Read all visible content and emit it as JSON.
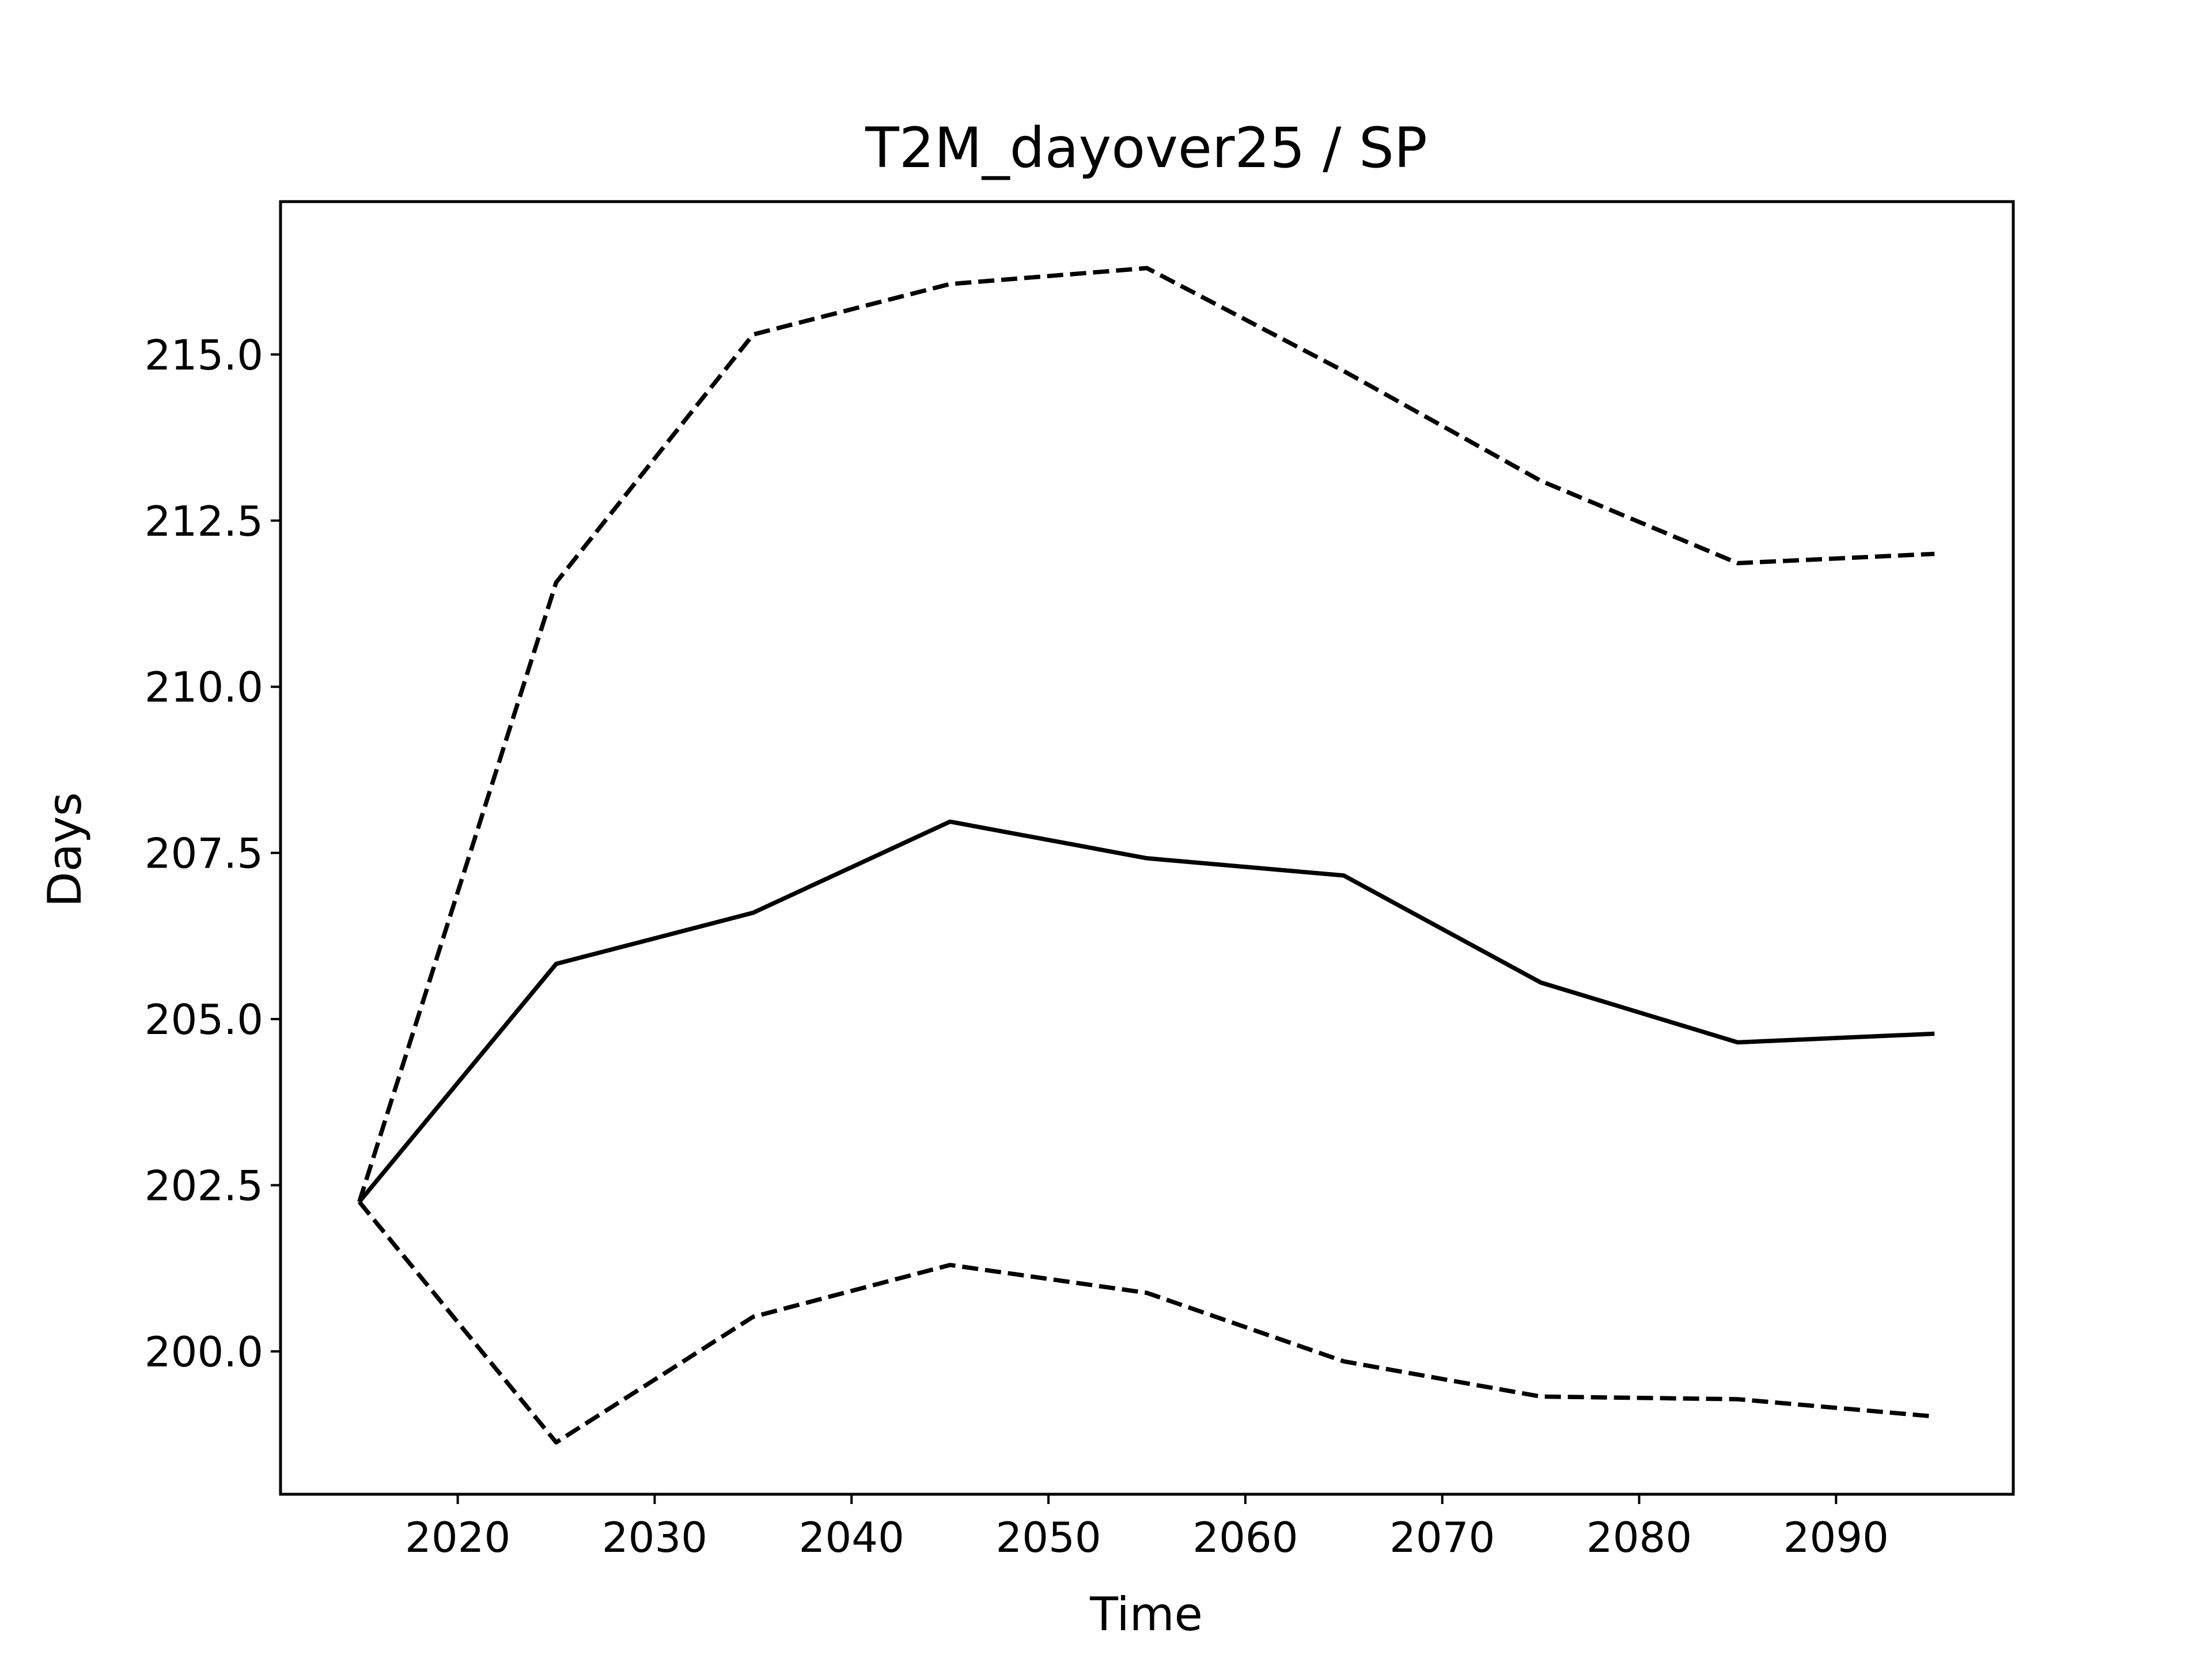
{
  "chart_data": {
    "type": "line",
    "title": "T2M_dayover25 / SP",
    "xlabel": "Time",
    "ylabel": "Days",
    "xlim": [
      2011,
      2099
    ],
    "ylim": [
      197.85,
      217.3
    ],
    "xticks": [
      2020,
      2030,
      2040,
      2050,
      2060,
      2070,
      2080,
      2090
    ],
    "xtick_labels": [
      "2020",
      "2030",
      "2040",
      "2050",
      "2060",
      "2070",
      "2080",
      "2090"
    ],
    "yticks": [
      200.0,
      202.5,
      205.0,
      207.5,
      210.0,
      212.5,
      215.0
    ],
    "ytick_labels": [
      "200.0",
      "202.5",
      "205.0",
      "207.5",
      "210.0",
      "212.5",
      "215.0"
    ],
    "grid": false,
    "legend": "none",
    "x": [
      2015,
      2025,
      2035,
      2045,
      2055,
      2065,
      2075,
      2085,
      2095
    ],
    "series": [
      {
        "style": "solid",
        "color": "#000000",
        "values": [
          202.25,
          205.83,
          206.6,
          207.97,
          207.42,
          207.16,
          205.55,
          204.65,
          204.78
        ]
      },
      {
        "style": "dashed",
        "color": "#000000",
        "values": [
          202.25,
          211.57,
          215.3,
          216.06,
          216.3,
          214.75,
          213.1,
          211.86,
          212.0
        ]
      },
      {
        "style": "dashed",
        "color": "#000000",
        "values": [
          202.25,
          198.63,
          200.52,
          201.3,
          200.88,
          199.85,
          199.32,
          199.28,
          199.02
        ]
      }
    ]
  }
}
